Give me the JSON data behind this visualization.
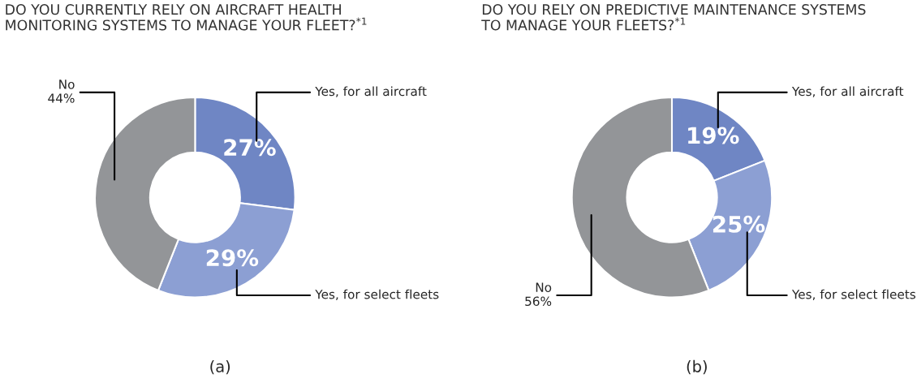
{
  "chart_data": [
    {
      "type": "donut",
      "title": "DO YOU CURRENTLY RELY ON AIRCRAFT HEALTH\nMONITORING SYSTEMS TO MANAGE YOUR FLEET?$^{*1}$",
      "categories": [
        "Yes, for all aircraft",
        "Yes, for select fleets",
        "No\n44%"
      ],
      "values": [
        27,
        29,
        44
      ],
      "colors": [
        "#6f86c4",
        "#8c9fd3",
        "#939598"
      ],
      "value_labels": [
        "27%",
        "29%",
        null
      ],
      "annotations": [
        "(a)"
      ]
    },
    {
      "type": "donut",
      "title": "DO YOU RELY ON PREDICTIVE MAINTENANCE SYSTEMS\nTO MANAGE YOUR FLEETS?$^{*1}$",
      "categories": [
        "Yes, for all aircraft",
        "Yes, for select fleets",
        "No\n56%"
      ],
      "values": [
        19,
        25,
        56
      ],
      "colors": [
        "#6f86c4",
        "#8c9fd3",
        "#939598"
      ],
      "value_labels": [
        "19%",
        "25%",
        null
      ],
      "annotations": [
        "(b)"
      ]
    }
  ]
}
